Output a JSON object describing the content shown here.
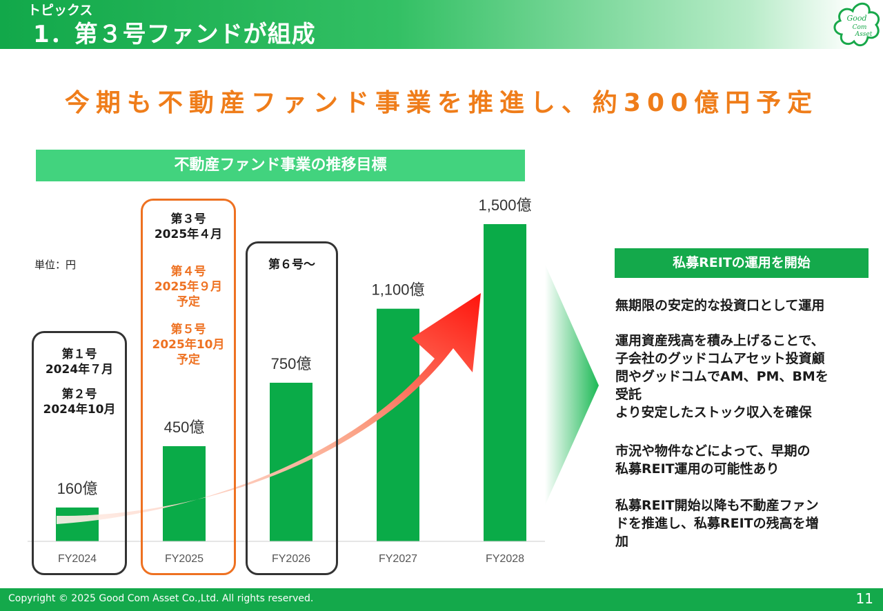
{
  "header": {
    "subtitle": "トピックス",
    "title": "1．第３号ファンドが組成",
    "logo_text": [
      "Good",
      "Com",
      "Asset"
    ]
  },
  "headline": "今期も不動産ファンド事業を推進し、約300億円予定",
  "chart_section": {
    "title": "不動産ファンド事業の推移目標",
    "unit_label": "単位：円"
  },
  "chart_data": {
    "type": "bar",
    "categories": [
      "FY2024",
      "FY2025",
      "FY2026",
      "FY2027",
      "FY2028"
    ],
    "values": [
      160,
      450,
      750,
      1100,
      1500
    ],
    "value_labels": [
      "160億",
      "450億",
      "750億",
      "1,100億",
      "1,500億"
    ],
    "ylim": [
      0,
      1500
    ],
    "bar_color": "#0aab48",
    "trend_arrow_colors": [
      "#fde6dd",
      "#ff1a0e"
    ]
  },
  "fund_notes": {
    "fy2024": [
      {
        "name": "第１号",
        "date": "2024年７月"
      },
      {
        "name": "第２号",
        "date": "2024年10月"
      }
    ],
    "fy2025": [
      {
        "name": "第３号",
        "date": "2025年４月",
        "status": ""
      },
      {
        "name": "第４号",
        "date": "2025年９月",
        "status": "予定"
      },
      {
        "name": "第５号",
        "date": "2025年10月",
        "status": "予定"
      }
    ],
    "fy2026": "第６号〜"
  },
  "side_panel": {
    "title": "私募REITの運用を開始",
    "bullets": [
      "無期限の安定的な投資口として運用",
      "運用資産残高を積み上げることで、\n子会社のグッドコムアセット投資顧\n問やグッドコムでAM、PM、BMを\n受託\nより安定したストック収入を確保",
      "市況や物件などによって、早期の\n私募REIT運用の可能性あり",
      "私募REIT開始以降も不動産ファン\nドを推進し、私募REITの残高を増\n加"
    ]
  },
  "footer": {
    "copyright": "Copyright © 2025 Good Com Asset Co.,Ltd. All rights reserved.",
    "page_number": "11"
  },
  "colors": {
    "brand_green": "#14a94b",
    "accent_orange": "#ee7121",
    "headline_orange": "#ef7d1a"
  }
}
